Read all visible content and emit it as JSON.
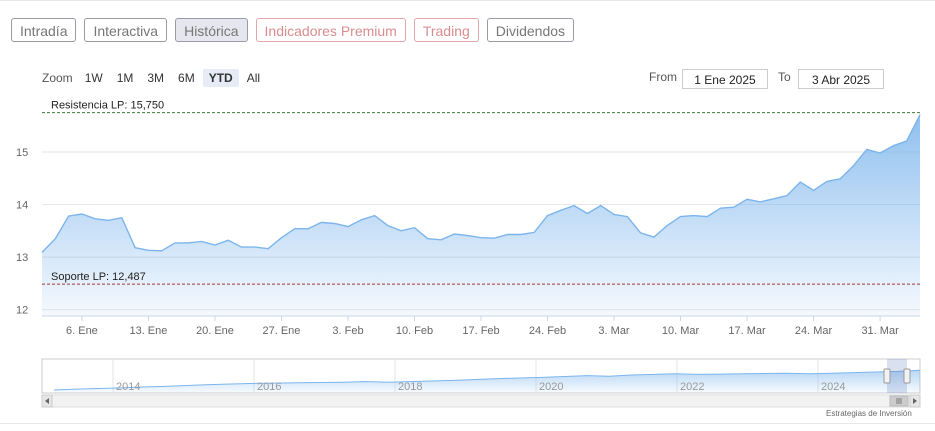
{
  "tabs": [
    {
      "label": "Intradía",
      "style": "normal"
    },
    {
      "label": "Interactiva",
      "style": "normal"
    },
    {
      "label": "Histórica",
      "style": "active"
    },
    {
      "label": "Indicadores Premium",
      "style": "premium"
    },
    {
      "label": "Trading",
      "style": "premium"
    },
    {
      "label": "Dividendos",
      "style": "normal"
    }
  ],
  "zoom": {
    "label": "Zoom",
    "options": [
      "1W",
      "1M",
      "3M",
      "6M",
      "YTD",
      "All"
    ],
    "selected": "YTD"
  },
  "range": {
    "from_label": "From",
    "from_value": "1 Ene 2025",
    "to_label": "To",
    "to_value": "3 Abr 2025"
  },
  "chart_data": {
    "type": "area",
    "title": "",
    "xlabel": "",
    "ylabel": "",
    "ylim": [
      11.88,
      15.97
    ],
    "yticks": [
      12,
      13,
      14,
      15
    ],
    "grid": true,
    "x_tick_labels": [
      "6. Ene",
      "13. Ene",
      "20. Ene",
      "27. Ene",
      "3. Feb",
      "10. Feb",
      "17. Feb",
      "24. Feb",
      "3. Mar",
      "10. Mar",
      "17. Mar",
      "24. Mar",
      "31. Mar"
    ],
    "series": [
      {
        "values": [
          13.09,
          13.35,
          13.78,
          13.82,
          13.73,
          13.7,
          13.75,
          13.18,
          13.13,
          13.12,
          13.27,
          13.27,
          13.3,
          13.23,
          13.32,
          13.19,
          13.19,
          13.16,
          13.37,
          13.54,
          13.54,
          13.66,
          13.64,
          13.58,
          13.71,
          13.79,
          13.6,
          13.5,
          13.56,
          13.35,
          13.33,
          13.44,
          13.41,
          13.37,
          13.36,
          13.43,
          13.43,
          13.47,
          13.79,
          13.89,
          13.98,
          13.83,
          13.98,
          13.81,
          13.77,
          13.46,
          13.38,
          13.6,
          13.77,
          13.79,
          13.77,
          13.93,
          13.95,
          14.1,
          14.05,
          14.11,
          14.17,
          14.43,
          14.27,
          14.44,
          14.49,
          14.74,
          15.05,
          14.98,
          15.12,
          15.21,
          15.71
        ],
        "color": "#7cb5ec"
      }
    ],
    "resistance": {
      "label": "Resistencia LP: 15,750",
      "value": 15.75,
      "color": "#3a7a3a"
    },
    "support": {
      "label": "Soporte LP: 12,487",
      "value": 12.487,
      "color": "#a03a3a"
    }
  },
  "navigator": {
    "years": [
      "2014",
      "2016",
      "2018",
      "2020",
      "2022",
      "2024"
    ],
    "values": [
      0.1,
      0.13,
      0.15,
      0.17,
      0.2,
      0.22,
      0.25,
      0.28,
      0.3,
      0.32,
      0.33,
      0.34,
      0.35,
      0.36,
      0.38,
      0.36,
      0.38,
      0.4,
      0.42,
      0.45,
      0.48,
      0.5,
      0.52,
      0.55,
      0.58,
      0.56,
      0.6,
      0.62,
      0.64,
      0.62,
      0.63,
      0.64,
      0.65,
      0.66,
      0.64,
      0.66,
      0.68,
      0.7,
      0.72,
      0.76
    ]
  },
  "credit": "Estrategias de Inversión"
}
